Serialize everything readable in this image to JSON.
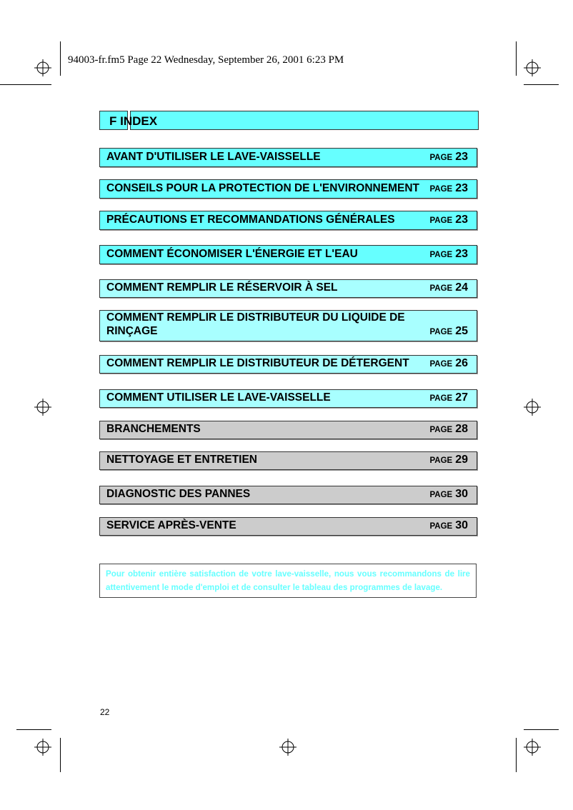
{
  "header_line": "94003-fr.fm5  Page 22  Wednesday, September 26, 2001  6:23 PM",
  "title": "F INDEX",
  "page_prefix": "PAGE",
  "entries": [
    {
      "label": "AVANT D'UTILISER LE LAVE-VAISSELLE",
      "page": "23",
      "color": "#66ffff"
    },
    {
      "label": "CONSEILS POUR LA PROTECTION DE L'ENVIRONNEMENT",
      "page": "23",
      "color": "#66ffff"
    },
    {
      "label": "PRÉCAUTIONS ET RECOMMANDATIONS GÉNÉRALES",
      "page": "23",
      "color": "#66ffff"
    },
    {
      "label": "COMMENT ÉCONOMISER L'ÉNERGIE ET L'EAU",
      "page": "23",
      "color": "#66ffff"
    },
    {
      "label": "COMMENT REMPLIR LE RÉSERVOIR À SEL",
      "page": "24",
      "color": "#a8ffff"
    },
    {
      "label": "COMMENT REMPLIR LE DISTRIBUTEUR DU LIQUIDE DE RINÇAGE",
      "page": "25",
      "color": "#a8ffff"
    },
    {
      "label": "COMMENT REMPLIR LE DISTRIBUTEUR DE DÉTERGENT",
      "page": "26",
      "color": "#a8ffff"
    },
    {
      "label": "COMMENT UTILISER LE LAVE-VAISSELLE",
      "page": "27",
      "color": "#a8ffff"
    },
    {
      "label": "BRANCHEMENTS",
      "page": "28",
      "color": "#cccccc"
    },
    {
      "label": "NETTOYAGE ET ENTRETIEN",
      "page": "29",
      "color": "#cccccc"
    },
    {
      "label": "DIAGNOSTIC DES PANNES",
      "page": "30",
      "color": "#cccccc"
    },
    {
      "label": "SERVICE APRÈS-VENTE",
      "page": "30",
      "color": "#cccccc"
    }
  ],
  "note": "Pour obtenir entière satisfaction de votre lave-vaisselle, nous vous recommandons de lire attentivement le mode d'emploi et de consulter le tableau des programmes de lavage.",
  "page_number": "22"
}
